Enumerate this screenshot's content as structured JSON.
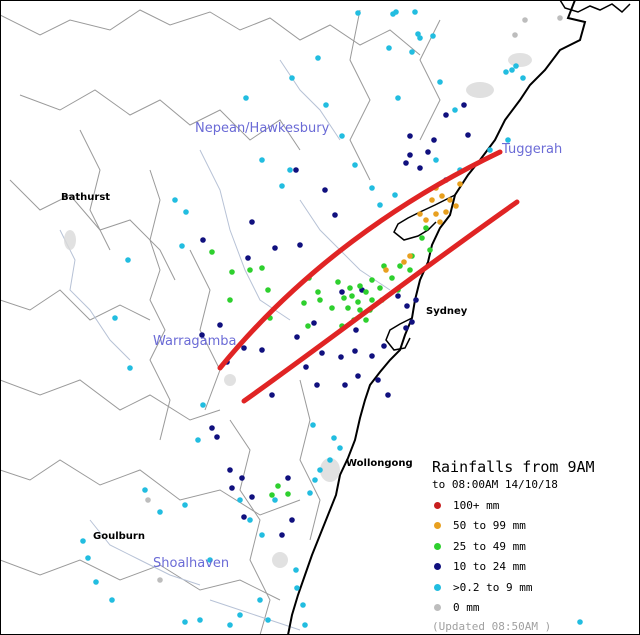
{
  "map": {
    "catchments": [
      {
        "id": "nepean",
        "name": "Nepean/Hawkesbury"
      },
      {
        "id": "warragamba",
        "name": "Warragamba"
      },
      {
        "id": "shoalhaven",
        "name": "Shoalhaven"
      },
      {
        "id": "tuggerah",
        "name": "Tuggerah"
      }
    ],
    "towns": [
      {
        "id": "bathurst",
        "name": "Bathurst"
      },
      {
        "id": "sydney",
        "name": "Sydney"
      },
      {
        "id": "wollongong",
        "name": "Wollongong"
      },
      {
        "id": "goulburn",
        "name": "Goulburn"
      }
    ]
  },
  "legend": {
    "title": "Rainfalls from 9AM",
    "subtitle": "to 08:00AM 14/10/18",
    "items": [
      {
        "label": "100+ mm",
        "color": "#c81e1e"
      },
      {
        "label": "50  to 99 mm",
        "color": "#e8a020"
      },
      {
        "label": "25  to 49 mm",
        "color": "#2ed02e"
      },
      {
        "label": "10  to 24 mm",
        "color": "#10107e"
      },
      {
        "label": ">0.2 to 9 mm",
        "color": "#22bde0"
      },
      {
        "label": "0 mm",
        "color": "#bdbdbd"
      }
    ],
    "updated": "(Updated 08:50AM  )"
  },
  "annotation": {
    "color": "#e02424"
  }
}
